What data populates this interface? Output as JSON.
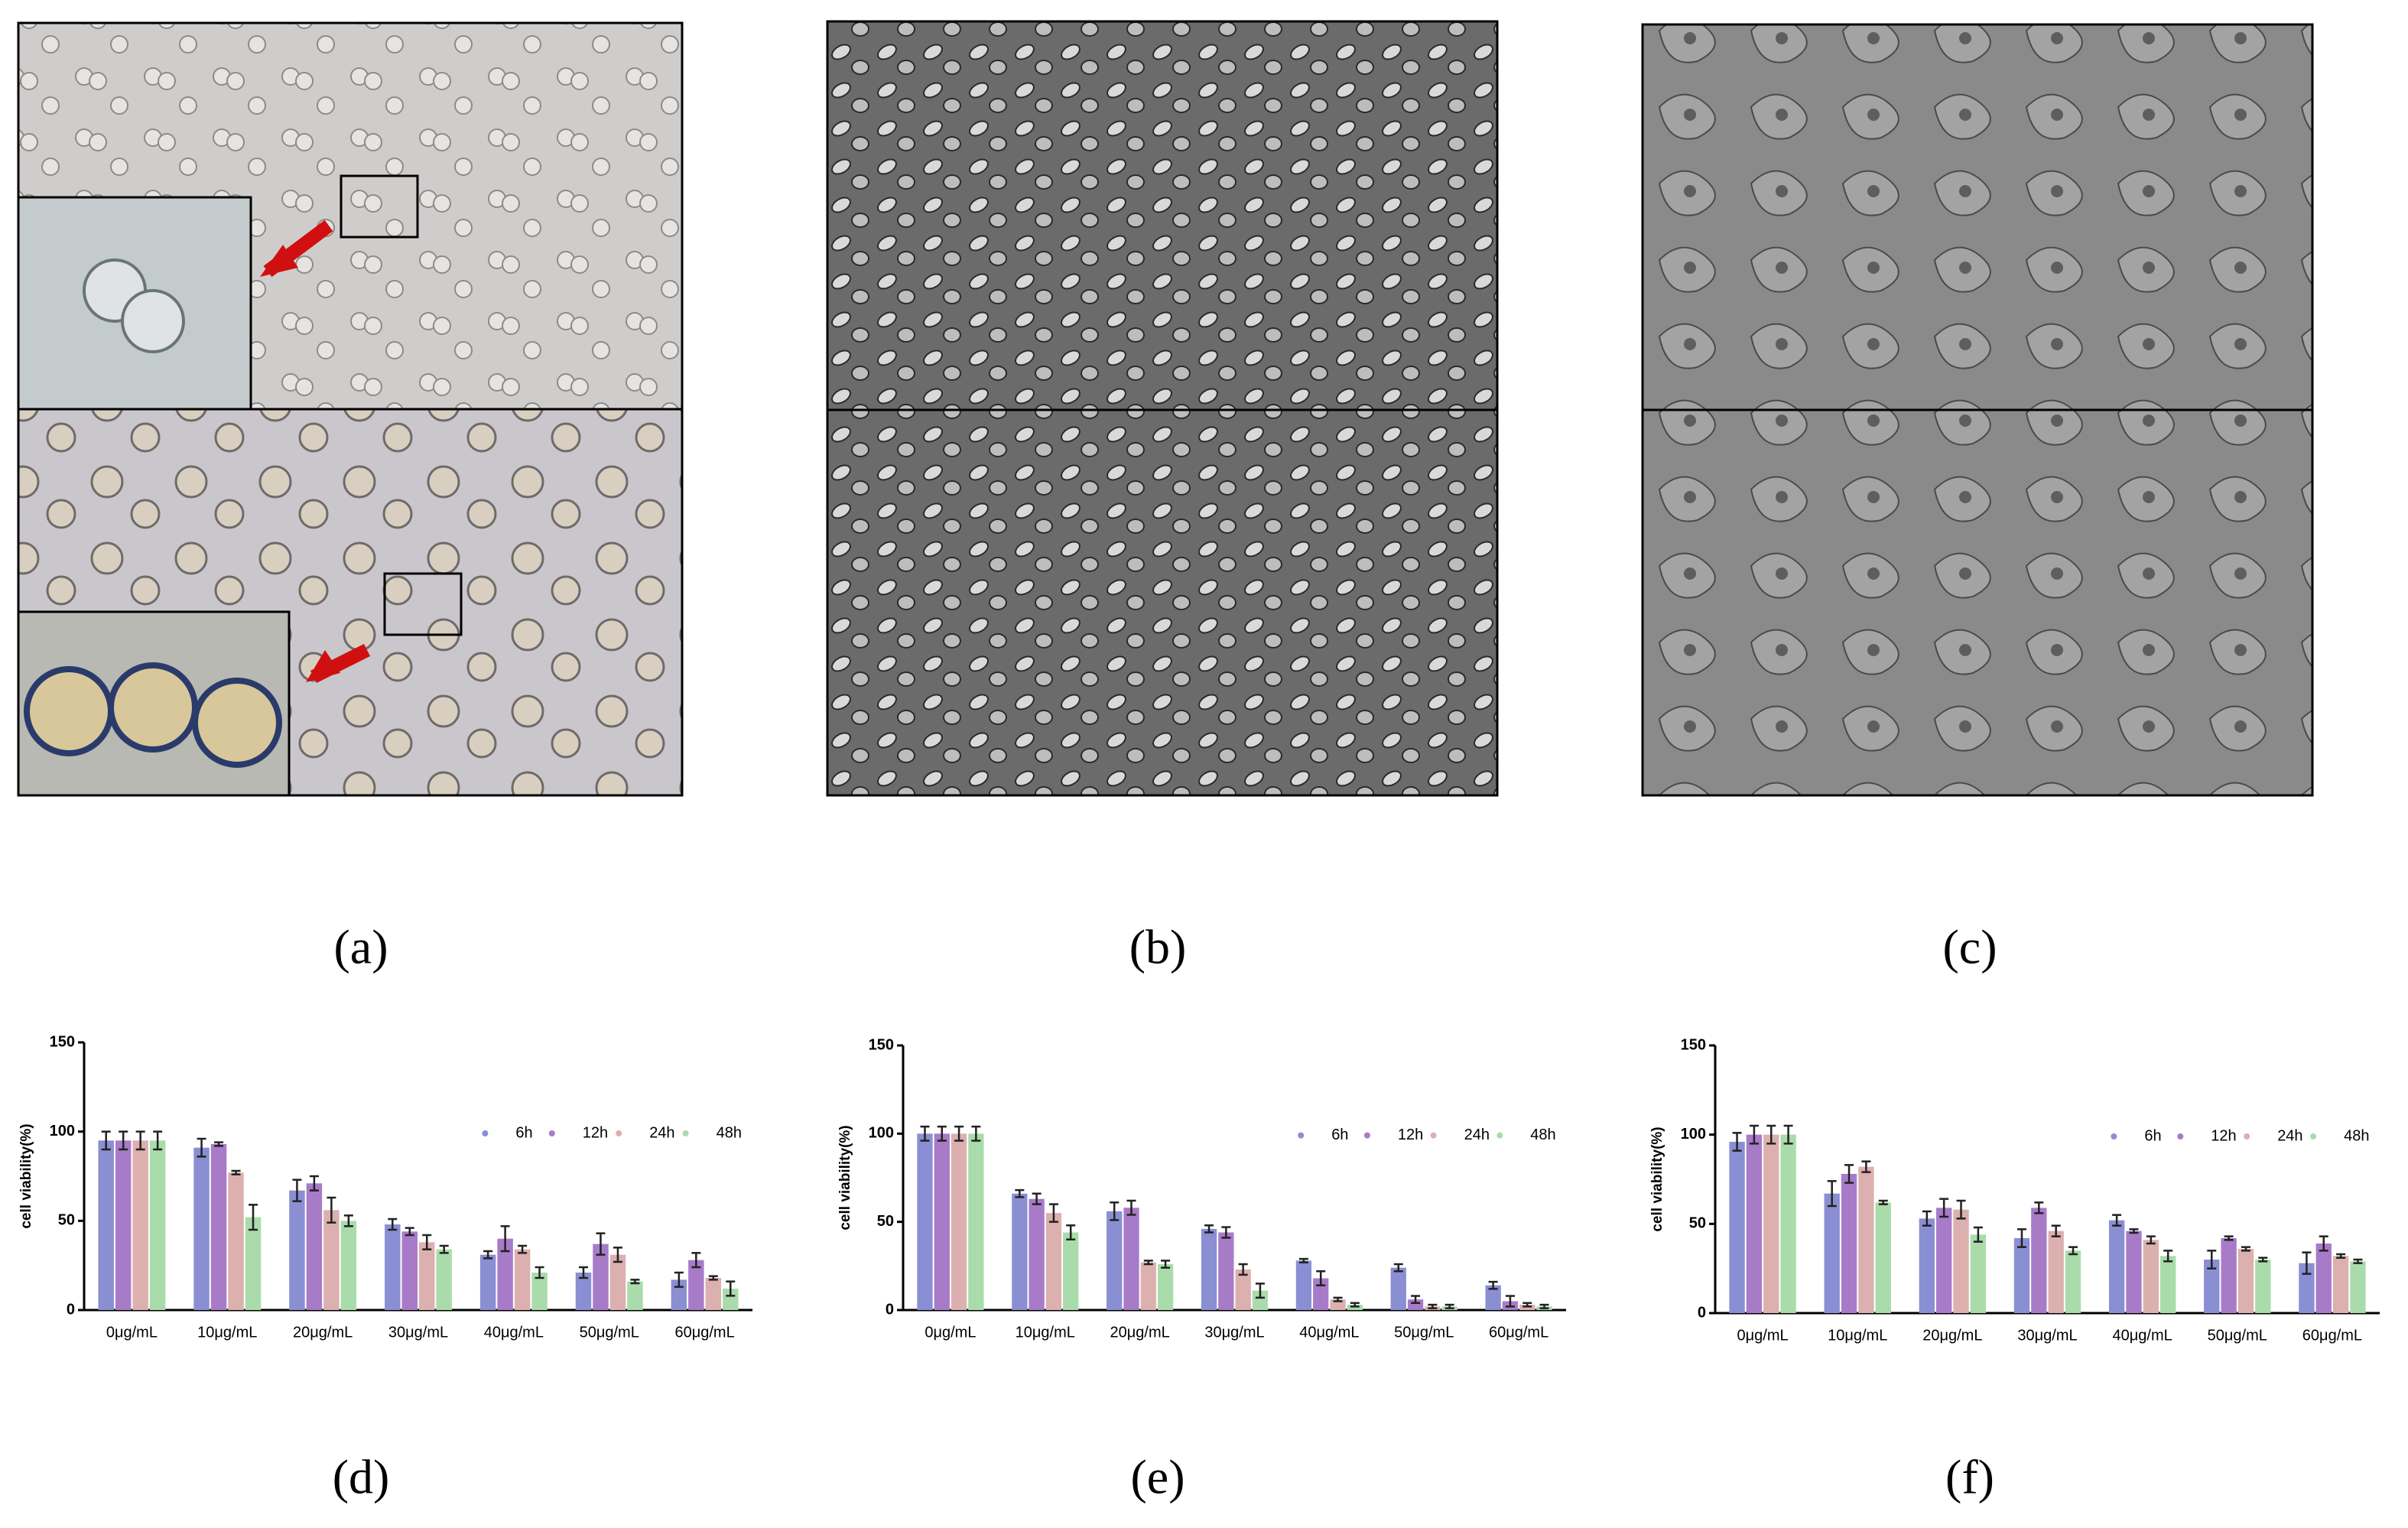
{
  "panel_labels": [
    "(a)",
    "(b)",
    "(c)"
  ],
  "chart_data": [
    {
      "type": "bar",
      "label": "(d)",
      "y_label": "cell viability(%)",
      "categories": [
        "0μg/mL",
        "10μg/mL",
        "20μg/mL",
        "30μg/mL",
        "40μg/mL",
        "50μg/mL",
        "60μg/mL"
      ],
      "ylim": [
        0,
        150
      ],
      "yticks": [
        0,
        50,
        100,
        150
      ],
      "legend": "upper right",
      "series": [
        {
          "name": "6h",
          "color": "#8a8fd3",
          "values": [
            95,
            91,
            67,
            48,
            31,
            21,
            17
          ],
          "errors": [
            5,
            5,
            6,
            3,
            2,
            3,
            4
          ]
        },
        {
          "name": "12h",
          "color": "#a87bc9",
          "values": [
            95,
            93,
            71,
            44,
            40,
            37,
            28
          ],
          "errors": [
            5,
            1,
            4,
            2,
            7,
            6,
            4
          ]
        },
        {
          "name": "24h",
          "color": "#dcb0ae",
          "values": [
            95,
            77,
            56,
            38,
            34,
            31,
            18
          ],
          "errors": [
            5,
            1,
            7,
            4,
            2,
            4,
            1
          ]
        },
        {
          "name": "48h",
          "color": "#a9dcaa",
          "values": [
            95,
            52,
            50,
            34,
            21,
            16,
            12
          ],
          "errors": [
            5,
            7,
            3,
            2,
            3,
            1,
            4
          ]
        }
      ]
    },
    {
      "type": "bar",
      "label": "(e)",
      "y_label": "cell viability(%)",
      "categories": [
        "0μg/mL",
        "10μg/mL",
        "20μg/mL",
        "30μg/mL",
        "40μg/mL",
        "50μg/mL",
        "60μg/mL"
      ],
      "ylim": [
        0,
        150
      ],
      "yticks": [
        0,
        50,
        100,
        150
      ],
      "legend": "upper right",
      "series": [
        {
          "name": "6h",
          "color": "#8a8fd3",
          "values": [
            100,
            66,
            56,
            46,
            28,
            24,
            14
          ],
          "errors": [
            4,
            2,
            5,
            2,
            1,
            2,
            2
          ]
        },
        {
          "name": "12h",
          "color": "#a87bc9",
          "values": [
            100,
            63,
            58,
            44,
            18,
            6,
            5
          ],
          "errors": [
            4,
            3,
            4,
            3,
            4,
            2,
            3
          ]
        },
        {
          "name": "24h",
          "color": "#dcb0ae",
          "values": [
            100,
            55,
            27,
            23,
            6,
            2,
            3
          ],
          "errors": [
            4,
            5,
            1,
            3,
            1,
            1,
            1
          ]
        },
        {
          "name": "48h",
          "color": "#a9dcaa",
          "values": [
            100,
            44,
            26,
            11,
            3,
            2,
            2
          ],
          "errors": [
            4,
            4,
            2,
            4,
            1,
            1,
            1
          ]
        }
      ]
    },
    {
      "type": "bar",
      "label": "(f)",
      "y_label": "cell viability(%)",
      "categories": [
        "0μg/mL",
        "10μg/mL",
        "20μg/mL",
        "30μg/mL",
        "40μg/mL",
        "50μg/mL",
        "60μg/mL"
      ],
      "ylim": [
        0,
        150
      ],
      "yticks": [
        0,
        50,
        100,
        150
      ],
      "legend": "upper right",
      "series": [
        {
          "name": "6h",
          "color": "#8a8fd3",
          "values": [
            96,
            67,
            53,
            42,
            52,
            30,
            28
          ],
          "errors": [
            5,
            7,
            4,
            5,
            3,
            5,
            6
          ]
        },
        {
          "name": "12h",
          "color": "#a87bc9",
          "values": [
            100,
            78,
            59,
            59,
            46,
            42,
            39
          ],
          "errors": [
            5,
            5,
            5,
            3,
            1,
            1,
            4
          ]
        },
        {
          "name": "24h",
          "color": "#dcb0ae",
          "values": [
            100,
            82,
            58,
            46,
            41,
            36,
            32
          ],
          "errors": [
            5,
            3,
            5,
            3,
            2,
            1,
            1
          ]
        },
        {
          "name": "48h",
          "color": "#a9dcaa",
          "values": [
            100,
            62,
            44,
            35,
            32,
            30,
            29
          ],
          "errors": [
            5,
            1,
            4,
            2,
            3,
            1,
            1
          ]
        }
      ]
    }
  ]
}
